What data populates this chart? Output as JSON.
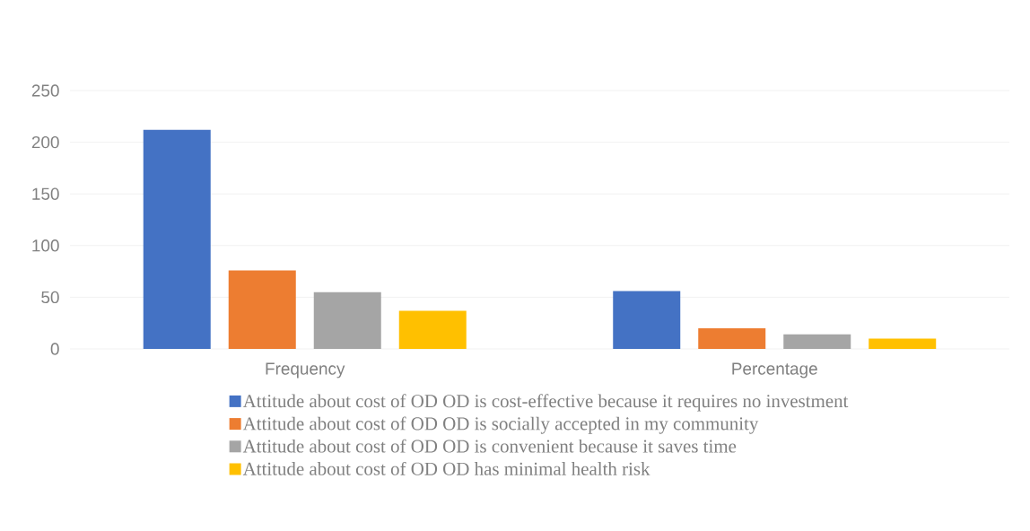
{
  "chart_data": {
    "type": "bar",
    "categories": [
      "Frequency",
      "Percentage"
    ],
    "series": [
      {
        "name": "Attitude about cost of OD OD is cost-effective because it requires no investment",
        "color": "#4472c4",
        "values": [
          212,
          56
        ]
      },
      {
        "name": "Attitude about cost of OD OD is socially accepted in my community",
        "color": "#ed7d31",
        "values": [
          76,
          20
        ]
      },
      {
        "name": "Attitude about cost of OD OD is convenient because it saves time",
        "color": "#a5a5a5",
        "values": [
          55,
          14
        ]
      },
      {
        "name": "Attitude about cost of OD OD has minimal health risk",
        "color": "#ffc000",
        "values": [
          37,
          10
        ]
      }
    ],
    "ylim": [
      0,
      250
    ],
    "yticks": [
      0,
      50,
      100,
      150,
      200,
      250
    ],
    "grid": "y",
    "legend": "bottom"
  }
}
